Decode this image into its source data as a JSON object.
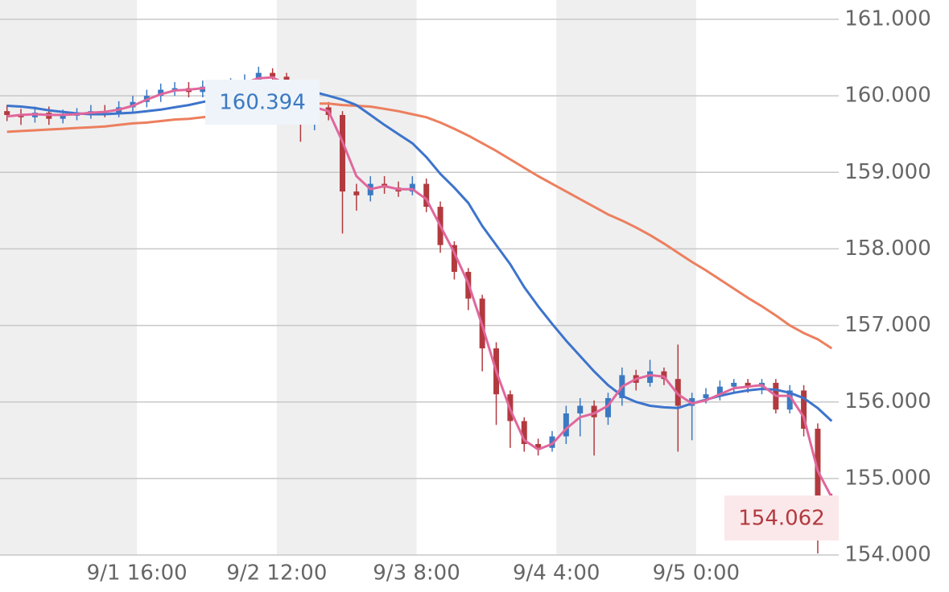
{
  "chart_data": {
    "type": "candlestick",
    "x": [
      1,
      3,
      5,
      7,
      9,
      11,
      13,
      15,
      17,
      19,
      21,
      23,
      25,
      27,
      29,
      31,
      33,
      35,
      37,
      39,
      41,
      43,
      45,
      47,
      49,
      51,
      53,
      55,
      57,
      59,
      61,
      63,
      65,
      67,
      69,
      71,
      73,
      75,
      77,
      79,
      81,
      83,
      85,
      87,
      89,
      91,
      93,
      95,
      97,
      99,
      101,
      103,
      105,
      107,
      109,
      111,
      113,
      115,
      117,
      119
    ],
    "open": [
      159.8,
      159.75,
      159.72,
      159.78,
      159.7,
      159.74,
      159.76,
      159.8,
      159.78,
      159.85,
      159.92,
      160.0,
      160.08,
      160.1,
      160.05,
      160.12,
      160.1,
      160.15,
      160.2,
      160.3,
      160.25,
      160.05,
      159.65,
      159.85,
      159.75,
      158.75,
      158.7,
      158.85,
      158.8,
      158.75,
      158.85,
      158.55,
      158.05,
      157.7,
      157.35,
      156.7,
      156.1,
      155.75,
      155.45,
      155.4,
      155.55,
      155.85,
      155.95,
      155.8,
      156.05,
      156.35,
      156.25,
      156.4,
      156.3,
      155.95,
      156.05,
      156.1,
      156.2,
      156.25,
      156.2,
      156.25,
      155.9,
      156.15,
      155.65,
      154.6
    ],
    "high": [
      159.88,
      159.83,
      159.86,
      159.86,
      159.82,
      159.84,
      159.88,
      159.88,
      159.93,
      160.0,
      160.08,
      160.16,
      160.18,
      160.18,
      160.2,
      160.2,
      160.23,
      160.28,
      160.38,
      160.36,
      160.3,
      160.1,
      159.92,
      159.92,
      159.8,
      158.85,
      158.95,
      158.95,
      158.88,
      158.95,
      158.92,
      158.62,
      158.1,
      157.75,
      157.4,
      156.78,
      156.15,
      155.8,
      155.52,
      155.62,
      155.95,
      156.05,
      156.02,
      156.12,
      156.45,
      156.42,
      156.55,
      156.45,
      156.75,
      156.12,
      156.18,
      156.28,
      156.3,
      156.3,
      156.3,
      156.3,
      156.22,
      156.22,
      155.72,
      154.8
    ],
    "low": [
      159.67,
      159.62,
      159.65,
      159.62,
      159.64,
      159.68,
      159.7,
      159.72,
      159.72,
      159.78,
      159.85,
      159.92,
      160.0,
      159.98,
      159.98,
      160.02,
      160.05,
      160.08,
      160.12,
      160.18,
      159.95,
      159.4,
      159.55,
      159.68,
      158.2,
      158.5,
      158.62,
      158.72,
      158.68,
      158.7,
      158.48,
      157.95,
      157.6,
      157.2,
      156.4,
      155.7,
      155.4,
      155.35,
      155.3,
      155.35,
      155.45,
      155.55,
      155.3,
      155.7,
      155.95,
      156.15,
      156.2,
      156.22,
      155.35,
      155.5,
      155.98,
      156.02,
      156.12,
      156.12,
      156.1,
      155.85,
      155.85,
      155.55,
      154.02,
      154.3
    ],
    "close": [
      159.75,
      159.72,
      159.78,
      159.7,
      159.74,
      159.76,
      159.8,
      159.78,
      159.85,
      159.92,
      160.0,
      160.08,
      160.1,
      160.05,
      160.12,
      160.1,
      160.15,
      160.2,
      160.3,
      160.25,
      160.05,
      159.65,
      159.85,
      159.75,
      158.75,
      158.7,
      158.85,
      158.8,
      158.75,
      158.85,
      158.55,
      158.05,
      157.7,
      157.35,
      156.7,
      156.1,
      155.75,
      155.45,
      155.4,
      155.55,
      155.85,
      155.95,
      155.8,
      156.05,
      156.35,
      156.25,
      156.4,
      156.3,
      155.95,
      156.05,
      156.1,
      156.2,
      156.25,
      156.2,
      156.25,
      155.9,
      156.15,
      155.65,
      154.6,
      154.45
    ],
    "up_color": "#3b79c2",
    "down_color": "#b23a3f",
    "series": [
      {
        "color": "#e0679c",
        "values": [
          159.73,
          159.75,
          159.76,
          159.75,
          159.75,
          159.76,
          159.78,
          159.79,
          159.82,
          159.87,
          159.95,
          160.02,
          160.07,
          160.08,
          160.1,
          160.1,
          160.13,
          160.17,
          160.23,
          160.24,
          160.15,
          159.9,
          159.85,
          159.8,
          159.4,
          158.95,
          158.78,
          158.82,
          158.78,
          158.78,
          158.65,
          158.3,
          157.95,
          157.55,
          157.0,
          156.4,
          155.9,
          155.5,
          155.38,
          155.45,
          155.65,
          155.8,
          155.85,
          155.95,
          156.2,
          156.3,
          156.35,
          156.33,
          156.1,
          155.98,
          156.02,
          156.1,
          156.18,
          156.2,
          156.22,
          156.08,
          156.08,
          155.8,
          155.1,
          154.75
        ]
      },
      {
        "color": "#3d74cc",
        "values": [
          159.87,
          159.86,
          159.84,
          159.81,
          159.79,
          159.77,
          159.76,
          159.76,
          159.77,
          159.78,
          159.8,
          159.82,
          159.85,
          159.88,
          159.92,
          159.95,
          159.98,
          160.0,
          160.03,
          160.05,
          160.06,
          160.06,
          160.05,
          160.0,
          159.95,
          159.88,
          159.75,
          159.62,
          159.5,
          159.38,
          159.2,
          158.98,
          158.8,
          158.6,
          158.3,
          158.05,
          157.8,
          157.5,
          157.25,
          157.02,
          156.8,
          156.6,
          156.4,
          156.22,
          156.08,
          156.0,
          155.95,
          155.93,
          155.92,
          155.98,
          156.03,
          156.08,
          156.12,
          156.15,
          156.17,
          156.16,
          156.12,
          156.05,
          155.92,
          155.75
        ]
      },
      {
        "color": "#ec7f5e",
        "values": [
          159.53,
          159.54,
          159.55,
          159.56,
          159.57,
          159.58,
          159.59,
          159.6,
          159.62,
          159.64,
          159.65,
          159.67,
          159.69,
          159.7,
          159.72,
          159.74,
          159.76,
          159.78,
          159.8,
          159.83,
          159.86,
          159.88,
          159.9,
          159.9,
          159.88,
          159.87,
          159.86,
          159.83,
          159.8,
          159.76,
          159.72,
          159.65,
          159.57,
          159.48,
          159.38,
          159.28,
          159.17,
          159.06,
          158.95,
          158.85,
          158.75,
          158.65,
          158.55,
          158.45,
          158.37,
          158.28,
          158.18,
          158.07,
          157.95,
          157.83,
          157.72,
          157.6,
          157.48,
          157.36,
          157.25,
          157.13,
          157.0,
          156.9,
          156.82,
          156.7
        ]
      }
    ],
    "xlim": [
      0,
      120
    ],
    "xticks": [
      {
        "value": 19.6,
        "label": "9/1 16:00"
      },
      {
        "value": 39.6,
        "label": "9/2 12:00"
      },
      {
        "value": 59.6,
        "label": "9/3 8:00"
      },
      {
        "value": 79.6,
        "label": "9/4 4:00"
      },
      {
        "value": 99.6,
        "label": "9/5 0:00"
      }
    ],
    "ylim": [
      154,
      161
    ],
    "yticks": [
      {
        "value": 154,
        "label": "154.000"
      },
      {
        "value": 155,
        "label": "155.000"
      },
      {
        "value": 156,
        "label": "156.000"
      },
      {
        "value": 157,
        "label": "157.000"
      },
      {
        "value": 158,
        "label": "158.000"
      },
      {
        "value": 159,
        "label": "159.000"
      },
      {
        "value": 160,
        "label": "160.000"
      },
      {
        "value": 161,
        "label": "161.000"
      }
    ],
    "grid": true,
    "price_labels": [
      160.394,
      154.062
    ]
  }
}
